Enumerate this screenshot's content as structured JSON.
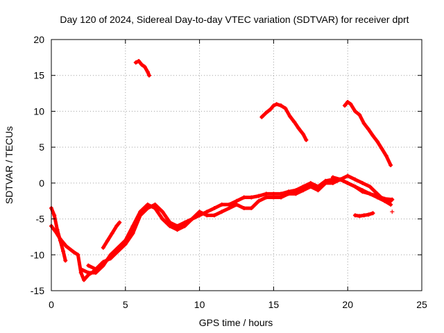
{
  "chart_data": {
    "type": "scatter",
    "title": "Day 120 of 2024, Sidereal Day-to-day VTEC variation (SDTVAR) for receiver dprt",
    "xlabel": "GPS time / hours",
    "ylabel": "SDTVAR / TECUs",
    "xlim": [
      0,
      25
    ],
    "ylim": [
      -15,
      20
    ],
    "xticks": [
      "0",
      "5",
      "10",
      "15",
      "20",
      "25"
    ],
    "yticks": [
      "-15",
      "-10",
      "-5",
      "0",
      "5",
      "10",
      "15",
      "20"
    ],
    "grid": true,
    "marker": "plus",
    "color": "#ff0000",
    "series": [
      {
        "name": "arc-early-1",
        "x": [
          0.0,
          0.2,
          0.4,
          0.6,
          0.8,
          0.95
        ],
        "y": [
          -3.5,
          -4.5,
          -6.5,
          -8.0,
          -9.5,
          -10.8
        ]
      },
      {
        "name": "arc-early-2",
        "x": [
          0.0,
          0.3,
          0.6,
          1.0,
          1.5,
          1.8,
          2.0,
          2.2,
          2.5,
          2.8,
          3.0
        ],
        "y": [
          -6.0,
          -6.8,
          -7.8,
          -8.8,
          -9.6,
          -10.0,
          -12.5,
          -13.5,
          -12.8,
          -12.4,
          -12.0
        ]
      },
      {
        "name": "arc-rise-1",
        "x": [
          2.0,
          2.5,
          3.0,
          3.5,
          4.0,
          4.5,
          5.0,
          5.5,
          6.0,
          6.5,
          7.0,
          7.5,
          8.0,
          8.5,
          9.0,
          9.5,
          10.0,
          10.5,
          11.0,
          11.5,
          12.0,
          12.5,
          13.0,
          13.5,
          14.0,
          14.5,
          15.0,
          15.5,
          16.0,
          16.5,
          17.0,
          17.5,
          18.0,
          18.5,
          19.0,
          19.5,
          20.0,
          20.5,
          21.0,
          21.5,
          22.0,
          22.5,
          22.9
        ],
        "y": [
          -12.0,
          -12.5,
          -12.5,
          -11.5,
          -10.0,
          -9.0,
          -8.0,
          -6.0,
          -4.0,
          -3.0,
          -3.5,
          -5.0,
          -6.0,
          -6.5,
          -6.0,
          -5.0,
          -4.5,
          -4.0,
          -3.5,
          -3.0,
          -3.0,
          -2.5,
          -2.0,
          -2.0,
          -1.8,
          -1.5,
          -1.5,
          -1.5,
          -1.2,
          -1.0,
          -0.5,
          0.0,
          -0.5,
          0.3,
          0.5,
          0.5,
          0.0,
          -0.5,
          -1.0,
          -1.5,
          -2.0,
          -2.5,
          -3.0
        ]
      },
      {
        "name": "arc-rise-2",
        "x": [
          2.5,
          3.0,
          3.5,
          4.0,
          4.5,
          5.0,
          5.5,
          6.0,
          6.5,
          7.0,
          7.5,
          8.0,
          8.5,
          9.0,
          9.5,
          10.0,
          10.5,
          11.0,
          11.5,
          12.0,
          12.5,
          13.0,
          13.5,
          14.0,
          14.5,
          15.0,
          15.5,
          16.0,
          16.5,
          17.0,
          17.5,
          18.0,
          18.5,
          19.0,
          19.5,
          20.0,
          20.5,
          21.0,
          21.5,
          22.0,
          22.5,
          22.9
        ],
        "y": [
          -11.5,
          -12.0,
          -11.0,
          -10.5,
          -9.5,
          -8.5,
          -7.0,
          -4.5,
          -3.5,
          -3.0,
          -4.0,
          -5.5,
          -6.0,
          -5.5,
          -5.0,
          -4.0,
          -4.5,
          -4.5,
          -4.0,
          -3.5,
          -3.0,
          -3.5,
          -3.5,
          -2.5,
          -2.0,
          -2.0,
          -2.0,
          -1.5,
          -1.5,
          -1.0,
          -0.5,
          -1.0,
          0.0,
          0.0,
          0.5,
          1.0,
          0.5,
          0.0,
          -0.5,
          -1.5,
          -2.5,
          -2.5
        ]
      },
      {
        "name": "arc-mid-bump",
        "x": [
          3.5,
          3.8,
          4.1,
          4.4,
          4.6
        ],
        "y": [
          -9.0,
          -8.0,
          -7.0,
          -6.0,
          -5.5
        ]
      },
      {
        "name": "arc-high-1",
        "x": [
          5.7,
          5.9,
          6.1,
          6.3,
          6.5,
          6.6
        ],
        "y": [
          16.8,
          17.0,
          16.5,
          16.2,
          15.5,
          15.0
        ]
      },
      {
        "name": "arc-high-2",
        "x": [
          14.2,
          14.5,
          14.8,
          15.0,
          15.2,
          15.5,
          15.8,
          16.1,
          16.4,
          16.7,
          17.0,
          17.2
        ],
        "y": [
          9.2,
          9.8,
          10.3,
          10.8,
          11.0,
          10.8,
          10.4,
          9.3,
          8.5,
          7.6,
          6.8,
          6.0
        ]
      },
      {
        "name": "arc-high-3",
        "x": [
          19.8,
          20.0,
          20.2,
          20.5,
          20.8,
          21.1,
          21.4,
          21.7,
          22.0,
          22.3,
          22.6,
          22.9
        ],
        "y": [
          10.8,
          11.3,
          11.0,
          10.0,
          9.5,
          8.3,
          7.5,
          6.6,
          5.8,
          4.8,
          3.8,
          2.5
        ]
      },
      {
        "name": "arc-late-low",
        "x": [
          20.5,
          20.8,
          21.1,
          21.4,
          21.7
        ],
        "y": [
          -4.5,
          -4.6,
          -4.5,
          -4.4,
          -4.2
        ]
      },
      {
        "name": "arc-late-2",
        "x": [
          19.0,
          19.5,
          20.0,
          20.5,
          21.0,
          21.5,
          22.0,
          22.5,
          23.0
        ],
        "y": [
          0.8,
          0.5,
          0.0,
          -0.5,
          -1.2,
          -1.5,
          -1.8,
          -2.2,
          -2.3
        ]
      }
    ],
    "outliers": [
      {
        "x": 23.0,
        "y": -4.0
      }
    ]
  }
}
